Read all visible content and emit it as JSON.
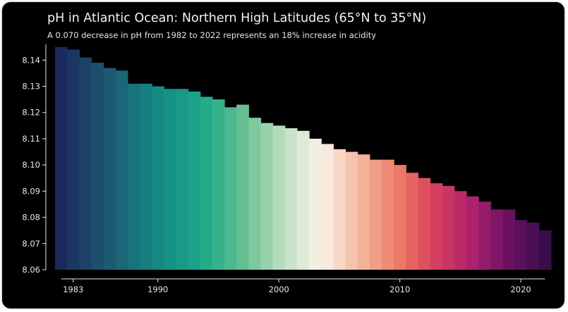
{
  "chart_data": {
    "type": "bar",
    "title": "pH in Atlantic Ocean: Northern High Latitudes (65°N to 35°N)",
    "subtitle": "A 0.070 decrease in pH from 1982 to 2022 represents an 18% increase in acidity",
    "xlabel": "",
    "ylabel": "",
    "categories": [
      1982,
      1983,
      1984,
      1985,
      1986,
      1987,
      1988,
      1989,
      1990,
      1991,
      1992,
      1993,
      1994,
      1995,
      1996,
      1997,
      1998,
      1999,
      2000,
      2001,
      2002,
      2003,
      2004,
      2005,
      2006,
      2007,
      2008,
      2009,
      2010,
      2011,
      2012,
      2013,
      2014,
      2015,
      2016,
      2017,
      2018,
      2019,
      2020,
      2021,
      2022
    ],
    "values": [
      8.145,
      8.144,
      8.141,
      8.139,
      8.137,
      8.136,
      8.131,
      8.131,
      8.13,
      8.129,
      8.129,
      8.128,
      8.126,
      8.125,
      8.122,
      8.123,
      8.118,
      8.116,
      8.115,
      8.114,
      8.113,
      8.11,
      8.108,
      8.106,
      8.105,
      8.104,
      8.102,
      8.102,
      8.1,
      8.097,
      8.095,
      8.093,
      8.092,
      8.09,
      8.088,
      8.086,
      8.083,
      8.083,
      8.079,
      8.078,
      8.075
    ],
    "ylim": [
      8.06,
      8.146
    ],
    "yticks": [
      "8.06",
      "8.07",
      "8.08",
      "8.09",
      "8.10",
      "8.11",
      "8.12",
      "8.13",
      "8.14"
    ],
    "xticks": [
      1983,
      1990,
      2000,
      2010,
      2020
    ],
    "xtick_labels": [
      "1983",
      "1990",
      "2000",
      "2010",
      "2020"
    ],
    "grid": false,
    "legend": "none",
    "colors": {
      "background": "#000000",
      "text": "#e8e8e8",
      "colormap": [
        "#1b2a5c",
        "#1d4f6e",
        "#19757c",
        "#139486",
        "#26ad88",
        "#6cc293",
        "#c0dfc2",
        "#fbf2e9",
        "#f4b9a0",
        "#ee7e67",
        "#d8415e",
        "#b0226e",
        "#6b1262",
        "#3a0d4a"
      ]
    }
  }
}
